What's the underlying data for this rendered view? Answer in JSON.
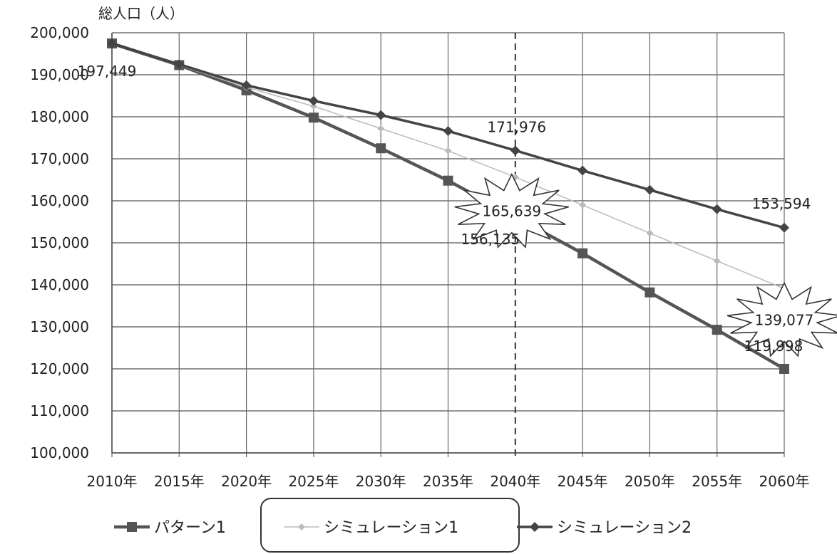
{
  "chart_data": {
    "type": "line",
    "ylabel": "総人口（人）",
    "xlabel": "",
    "ylim": [
      100000,
      200000
    ],
    "yticks": [
      "100,000",
      "110,000",
      "120,000",
      "130,000",
      "140,000",
      "150,000",
      "160,000",
      "170,000",
      "180,000",
      "190,000",
      "200,000"
    ],
    "ytick_values": [
      100000,
      110000,
      120000,
      130000,
      140000,
      150000,
      160000,
      170000,
      180000,
      190000,
      200000
    ],
    "categories": [
      "2010年",
      "2015年",
      "2020年",
      "2025年",
      "2030年",
      "2035年",
      "2040年",
      "2045年",
      "2050年",
      "2055年",
      "2060年"
    ],
    "grid": true,
    "legend_position": "bottom",
    "reference_line": "2040年",
    "series": [
      {
        "name": "パターン1",
        "marker": "square",
        "color": "#555555",
        "values": [
          197449,
          192300,
          186300,
          179800,
          172500,
          164800,
          156135,
          147500,
          138200,
          129300,
          119998
        ]
      },
      {
        "name": "シミュレーション1",
        "marker": "diamond",
        "color": "#bbbbbb",
        "values": [
          197449,
          192300,
          187000,
          182500,
          177200,
          171900,
          165639,
          159000,
          152300,
          145700,
          139077
        ]
      },
      {
        "name": "シミュレーション2",
        "marker": "diamond",
        "color": "#444444",
        "values": [
          197449,
          192500,
          187500,
          183800,
          180400,
          176600,
          171976,
          167200,
          162600,
          158000,
          153594
        ]
      }
    ],
    "annotations": [
      {
        "text": "197,449",
        "category": "2010年",
        "value": 197449
      },
      {
        "text": "171,976",
        "category": "2040年",
        "value": 171976
      },
      {
        "text": "165,639",
        "category": "2040年",
        "value": 165639,
        "burst": true
      },
      {
        "text": "156,135",
        "category": "2040年",
        "value": 156135
      },
      {
        "text": "153,594",
        "category": "2060年",
        "value": 153594
      },
      {
        "text": "139,077",
        "category": "2060年",
        "value": 139077,
        "burst": true
      },
      {
        "text": "119,998",
        "category": "2060年",
        "value": 119998
      }
    ],
    "highlighted_legend": "シミュレーション1"
  }
}
